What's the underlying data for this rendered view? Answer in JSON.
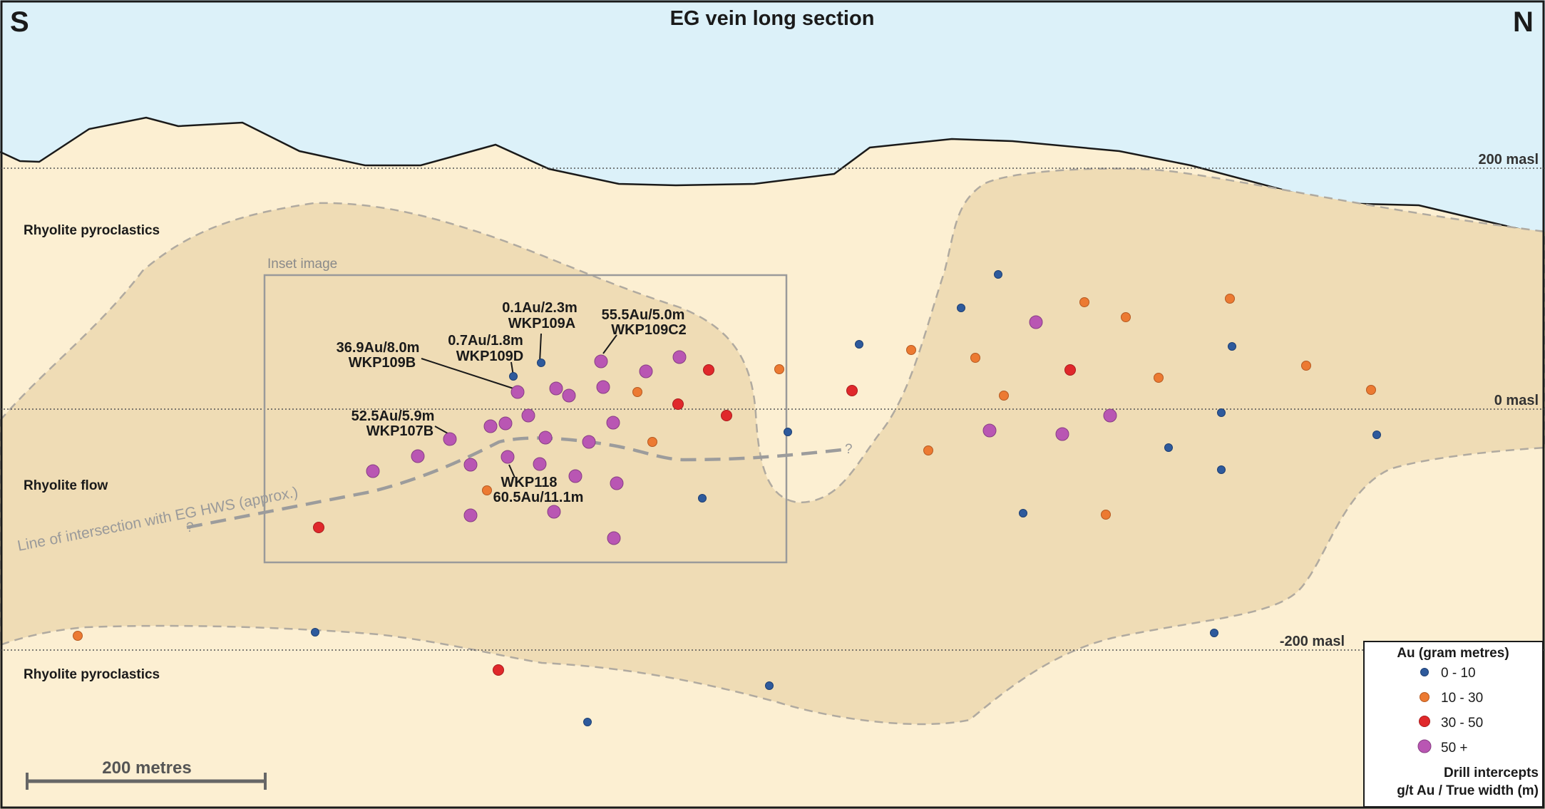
{
  "title": "EG vein long section",
  "compass": {
    "left": "S",
    "right": "N"
  },
  "elevations": {
    "top": "200 masl",
    "mid": "0 masl",
    "bottom": "-200 masl"
  },
  "units": {
    "upper": "Rhyolite pyroclastics",
    "middle": "Rhyolite flow",
    "lower": "Rhyolite pyroclastics"
  },
  "inset_label": "Inset image",
  "hws_line": {
    "label": "Line of intersection with EG HWS (approx.)",
    "q_left": "?",
    "q_right": "?"
  },
  "scale_bar": {
    "label": "200 metres"
  },
  "legend": {
    "title": "Au (gram metres)",
    "items": [
      {
        "label": "0 - 10",
        "color": "#2e5a9c"
      },
      {
        "label": "10 - 30",
        "color": "#ec7a32"
      },
      {
        "label": "30 - 50",
        "color": "#e0282b"
      },
      {
        "label": "50 +",
        "color": "#b956b3"
      }
    ],
    "footer_line1": "Drill intercepts",
    "footer_line2": "g/t Au / True width (m)"
  },
  "callouts": [
    {
      "intercept": "0.1Au/2.3m",
      "hole": "WKP109A"
    },
    {
      "intercept": "0.7Au/1.8m",
      "hole": "WKP109D"
    },
    {
      "intercept": "55.5Au/5.0m",
      "hole": "WKP109C2"
    },
    {
      "intercept": "36.9Au/8.0m",
      "hole": "WKP109B"
    },
    {
      "intercept": "52.5Au/5.9m",
      "hole": "WKP107B"
    },
    {
      "hole": "WKP118",
      "intercept": "60.5Au/11.1m"
    }
  ],
  "colors": {
    "sky": "#dcf1f9",
    "host": "#fcefd2",
    "vein_zone": "#efdcb5",
    "outline": "#1a1a1a",
    "dashed_boundary": "#b0aaa0",
    "hws": "#9c9c9c",
    "text": "#1a1a1a"
  }
}
